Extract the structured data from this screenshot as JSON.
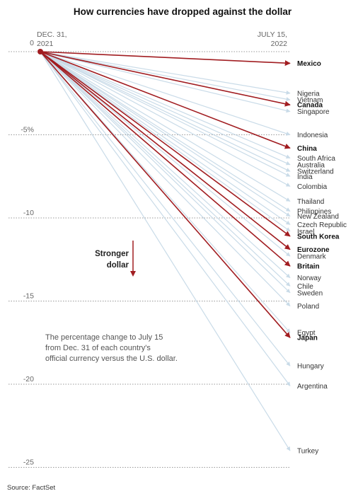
{
  "title": "How currencies have dropped against the dollar",
  "start_label": [
    "DEC. 31,",
    "2021"
  ],
  "end_label": [
    "JULY 15,",
    "2022"
  ],
  "annotation": "Stronger\ndollar",
  "note": [
    "The percentage change to July 15",
    "from Dec. 31 of each country's",
    "official currency versus the U.S. dollar."
  ],
  "source": "Source: FactSet",
  "colors": {
    "highlight": "#a11d21",
    "other": "#c9dbe8",
    "gridline": "#999999"
  },
  "chart_data": {
    "type": "line",
    "title": "How currencies have dropped against the dollar",
    "x": [
      "Dec. 31, 2021",
      "July 15, 2022"
    ],
    "ylim": [
      -26,
      0.5
    ],
    "yticks": [
      0,
      -5,
      -10,
      -15,
      -20,
      -25
    ],
    "ytick_labels": [
      "0",
      "-5%",
      "-10",
      "-15",
      "-20",
      "-25"
    ],
    "grid": true,
    "series": [
      {
        "name": "Mexico",
        "value": -0.7,
        "highlight": true
      },
      {
        "name": "Nigeria",
        "value": -2.5,
        "highlight": false
      },
      {
        "name": "Vietnam",
        "value": -2.9,
        "highlight": false
      },
      {
        "name": "Canada",
        "value": -3.2,
        "highlight": true
      },
      {
        "name": "Singapore",
        "value": -3.6,
        "highlight": false
      },
      {
        "name": "Indonesia",
        "value": -5.0,
        "highlight": false
      },
      {
        "name": "China",
        "value": -5.8,
        "highlight": true
      },
      {
        "name": "South Africa",
        "value": -6.4,
        "highlight": false
      },
      {
        "name": "Australia",
        "value": -6.8,
        "highlight": false
      },
      {
        "name": "Switzerland",
        "value": -7.2,
        "highlight": false
      },
      {
        "name": "India",
        "value": -7.5,
        "highlight": false
      },
      {
        "name": "Colombia",
        "value": -8.1,
        "highlight": false
      },
      {
        "name": "Thailand",
        "value": -9.0,
        "highlight": false
      },
      {
        "name": "Philippines",
        "value": -9.6,
        "highlight": false
      },
      {
        "name": "New Zealand",
        "value": -9.9,
        "highlight": false
      },
      {
        "name": "Czech Republic",
        "value": -10.4,
        "highlight": false
      },
      {
        "name": "Israel",
        "value": -10.8,
        "highlight": false
      },
      {
        "name": "South Korea",
        "value": -11.1,
        "highlight": true
      },
      {
        "name": "Eurozone",
        "value": -11.9,
        "highlight": true
      },
      {
        "name": "Denmark",
        "value": -12.3,
        "highlight": false
      },
      {
        "name": "Britain",
        "value": -12.9,
        "highlight": true
      },
      {
        "name": "Norway",
        "value": -13.6,
        "highlight": false
      },
      {
        "name": "Chile",
        "value": -14.1,
        "highlight": false
      },
      {
        "name": "Sweden",
        "value": -14.5,
        "highlight": false
      },
      {
        "name": "Poland",
        "value": -15.3,
        "highlight": false
      },
      {
        "name": "Egypt",
        "value": -16.9,
        "highlight": false
      },
      {
        "name": "Japan",
        "value": -17.2,
        "highlight": true
      },
      {
        "name": "Hungary",
        "value": -18.9,
        "highlight": false
      },
      {
        "name": "Argentina",
        "value": -20.1,
        "highlight": false
      },
      {
        "name": "Turkey",
        "value": -24.0,
        "highlight": false
      }
    ]
  }
}
